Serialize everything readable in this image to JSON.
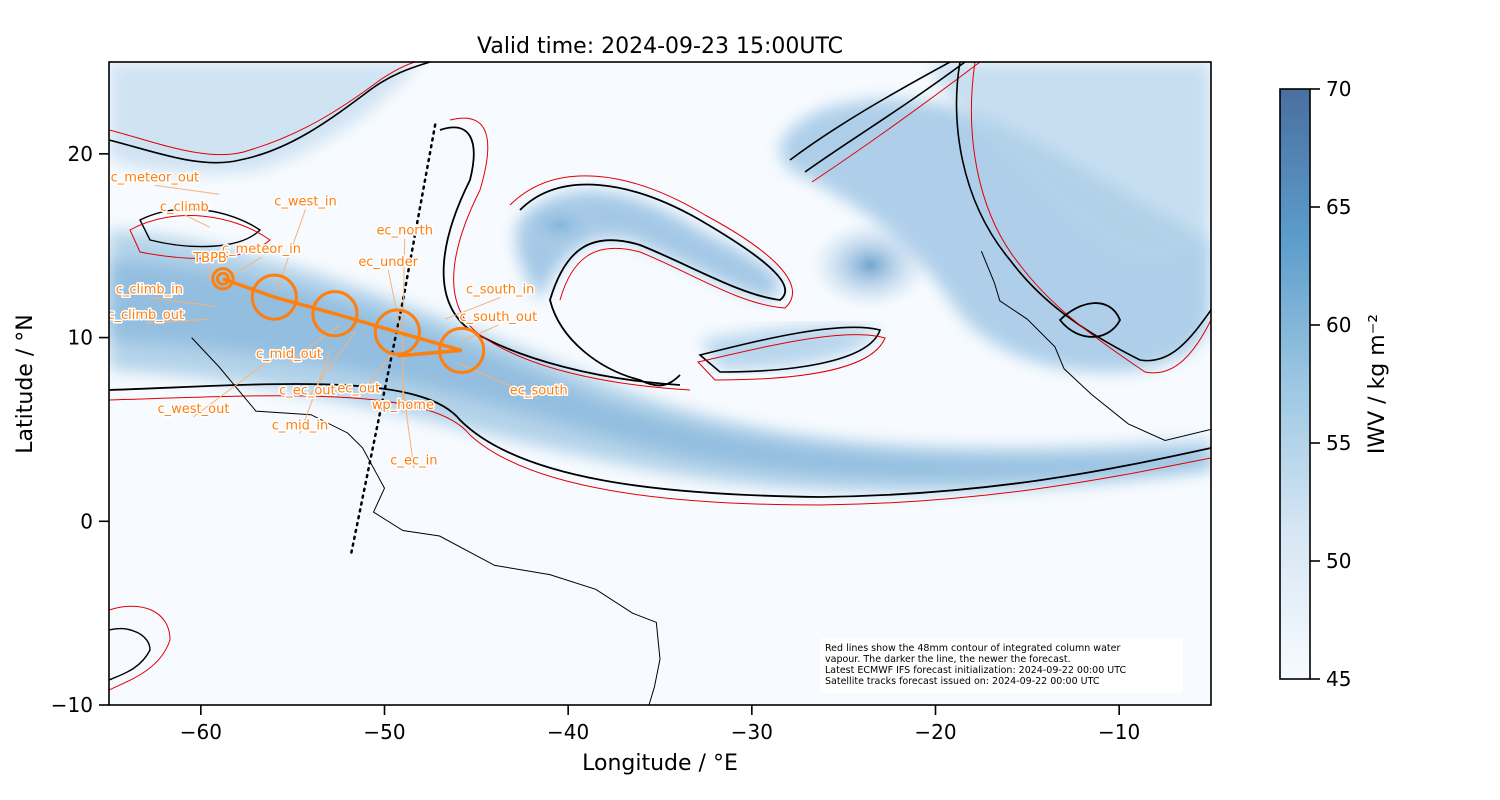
{
  "title": "Valid time: 2024-09-23 15:00UTC",
  "xlabel": "Longitude / °E",
  "ylabel": "Latitude / °N",
  "x_range": [
    -65,
    -5
  ],
  "y_range": [
    -10,
    25
  ],
  "x_ticks": [
    {
      "value": -60,
      "label": "−60"
    },
    {
      "value": -50,
      "label": "−50"
    },
    {
      "value": -40,
      "label": "−40"
    },
    {
      "value": -30,
      "label": "−30"
    },
    {
      "value": -20,
      "label": "−20"
    },
    {
      "value": -10,
      "label": "−10"
    }
  ],
  "y_ticks": [
    {
      "value": 20,
      "label": "20"
    },
    {
      "value": 10,
      "label": "10"
    },
    {
      "value": 0,
      "label": "0"
    },
    {
      "value": -10,
      "label": "−10"
    }
  ],
  "colorbar": {
    "label": "IWV / kg m⁻²",
    "range": [
      45,
      70
    ],
    "ticks": [
      {
        "value": 70,
        "label": "70"
      },
      {
        "value": 65,
        "label": "65"
      },
      {
        "value": 60,
        "label": "60"
      },
      {
        "value": 55,
        "label": "55"
      },
      {
        "value": 50,
        "label": "50"
      },
      {
        "value": 45,
        "label": "45"
      }
    ],
    "color_low": "#f7fbff",
    "color_high": "#4a6fa0"
  },
  "colors": {
    "track": "#ff7f0e",
    "contour_new": "#000000",
    "contour_old": "#e00000",
    "coast": "#000000"
  },
  "flight_track": [
    {
      "lon": -58.8,
      "lat": 13.2
    },
    {
      "lon": -56.0,
      "lat": 12.2
    },
    {
      "lon": -52.7,
      "lat": 11.3
    },
    {
      "lon": -49.3,
      "lat": 10.3
    },
    {
      "lon": -45.8,
      "lat": 9.3
    },
    {
      "lon": -49.3,
      "lat": 9.0
    }
  ],
  "circles": [
    {
      "lon": -58.8,
      "lat": 13.2,
      "r": 0.55
    },
    {
      "lon": -58.8,
      "lat": 13.2,
      "r": 0.3
    },
    {
      "lon": -56.0,
      "lat": 12.2,
      "r": 1.2
    },
    {
      "lon": -52.7,
      "lat": 11.3,
      "r": 1.2
    },
    {
      "lon": -49.3,
      "lat": 10.3,
      "r": 1.2
    },
    {
      "lon": -45.8,
      "lat": 9.3,
      "r": 1.2
    }
  ],
  "satellite_track": [
    {
      "lon": -51.8,
      "lat": -1.7
    },
    {
      "lon": -49.0,
      "lat": 12.0
    },
    {
      "lon": -47.2,
      "lat": 21.8
    }
  ],
  "waypoints": [
    {
      "name": "c_meteor_out",
      "lon": -62.5,
      "lat": 18.5,
      "ax": -59.0,
      "ay": 17.8
    },
    {
      "name": "c_climb",
      "lon": -60.9,
      "lat": 16.9,
      "ax": -59.5,
      "ay": 16.0
    },
    {
      "name": "c_west_in",
      "lon": -54.3,
      "lat": 17.2,
      "ax": -55.9,
      "ay": 12.5
    },
    {
      "name": "c_meteor_in",
      "lon": -56.7,
      "lat": 14.6,
      "ax": -58.4,
      "ay": 13.3
    },
    {
      "name": "TBPB",
      "lon": -59.5,
      "lat": 14.1,
      "ax": -59.5,
      "ay": 13.1
    },
    {
      "name": "ec_north",
      "lon": -48.9,
      "lat": 15.6,
      "ax": -49.0,
      "ay": 10.2
    },
    {
      "name": "ec_under",
      "lon": -49.8,
      "lat": 13.9,
      "ax": -49.0,
      "ay": 9.8
    },
    {
      "name": "c_south_in",
      "lon": -43.7,
      "lat": 12.4,
      "ax": -46.7,
      "ay": 11.0
    },
    {
      "name": "c_climb_in",
      "lon": -62.8,
      "lat": 12.4,
      "ax": -59.2,
      "ay": 11.7
    },
    {
      "name": "c_south_out",
      "lon": -43.8,
      "lat": 10.9,
      "ax": -45.8,
      "ay": 9.8
    },
    {
      "name": "c_climb_out",
      "lon": -63.0,
      "lat": 11.0,
      "ax": -59.6,
      "ay": 11.0
    },
    {
      "name": "c_mid_out",
      "lon": -55.2,
      "lat": 8.9,
      "ax": -52.4,
      "ay": 10.7
    },
    {
      "name": "ec_out",
      "lon": -51.4,
      "lat": 7.0,
      "ax": -49.6,
      "ay": 9.1
    },
    {
      "name": "ec_south",
      "lon": -41.6,
      "lat": 6.9,
      "ax": -46.0,
      "ay": 8.6
    },
    {
      "name": "c_ec_out",
      "lon": -54.2,
      "lat": 6.9,
      "ax": -51.6,
      "ay": 10.3
    },
    {
      "name": "wp_home",
      "lon": -49.0,
      "lat": 6.1,
      "ax": -49.0,
      "ay": 9.8
    },
    {
      "name": "c_west_out",
      "lon": -60.4,
      "lat": 5.9,
      "ax": -56.5,
      "ay": 8.6
    },
    {
      "name": "c_mid_in",
      "lon": -54.6,
      "lat": 5.0,
      "ax": -52.9,
      "ay": 9.4
    },
    {
      "name": "c_ec_in",
      "lon": -48.4,
      "lat": 3.1,
      "ax": -49.0,
      "ay": 7.3
    }
  ],
  "info_box": {
    "lines": [
      "Red lines show the 48mm contour of integrated column water",
      "vapour. The darker the line, the newer the forecast.",
      "Latest ECMWF IFS forecast initialization: 2024-09-22 00:00 UTC",
      "Satellite tracks forecast issued on: 2024-09-22 00:00 UTC"
    ]
  },
  "coastline": [
    {
      "lon": -60.5,
      "lat": 10.0
    },
    {
      "lon": -59.0,
      "lat": 8.4
    },
    {
      "lon": -57.0,
      "lat": 6.0
    },
    {
      "lon": -54.0,
      "lat": 5.8
    },
    {
      "lon": -52.0,
      "lat": 4.8
    },
    {
      "lon": -51.2,
      "lat": 4.0
    },
    {
      "lon": -50.0,
      "lat": 1.8
    },
    {
      "lon": -50.6,
      "lat": 0.5
    },
    {
      "lon": -49.0,
      "lat": -0.5
    },
    {
      "lon": -47.0,
      "lat": -0.8
    },
    {
      "lon": -44.0,
      "lat": -2.4
    },
    {
      "lon": -41.0,
      "lat": -2.9
    },
    {
      "lon": -38.5,
      "lat": -3.7
    },
    {
      "lon": -36.5,
      "lat": -5.0
    },
    {
      "lon": -35.2,
      "lat": -5.5
    },
    {
      "lon": -35.0,
      "lat": -7.5
    },
    {
      "lon": -35.3,
      "lat": -9.0
    },
    {
      "lon": -35.6,
      "lat": -10.0
    }
  ],
  "africa_coast": [
    {
      "lon": -17.5,
      "lat": 14.7
    },
    {
      "lon": -16.8,
      "lat": 13.0
    },
    {
      "lon": -16.5,
      "lat": 12.0
    },
    {
      "lon": -15.0,
      "lat": 11.0
    },
    {
      "lon": -13.5,
      "lat": 9.5
    },
    {
      "lon": -13.0,
      "lat": 8.3
    },
    {
      "lon": -11.5,
      "lat": 6.9
    },
    {
      "lon": -9.5,
      "lat": 5.3
    },
    {
      "lon": -7.5,
      "lat": 4.4
    },
    {
      "lon": -5.0,
      "lat": 5.0
    }
  ]
}
